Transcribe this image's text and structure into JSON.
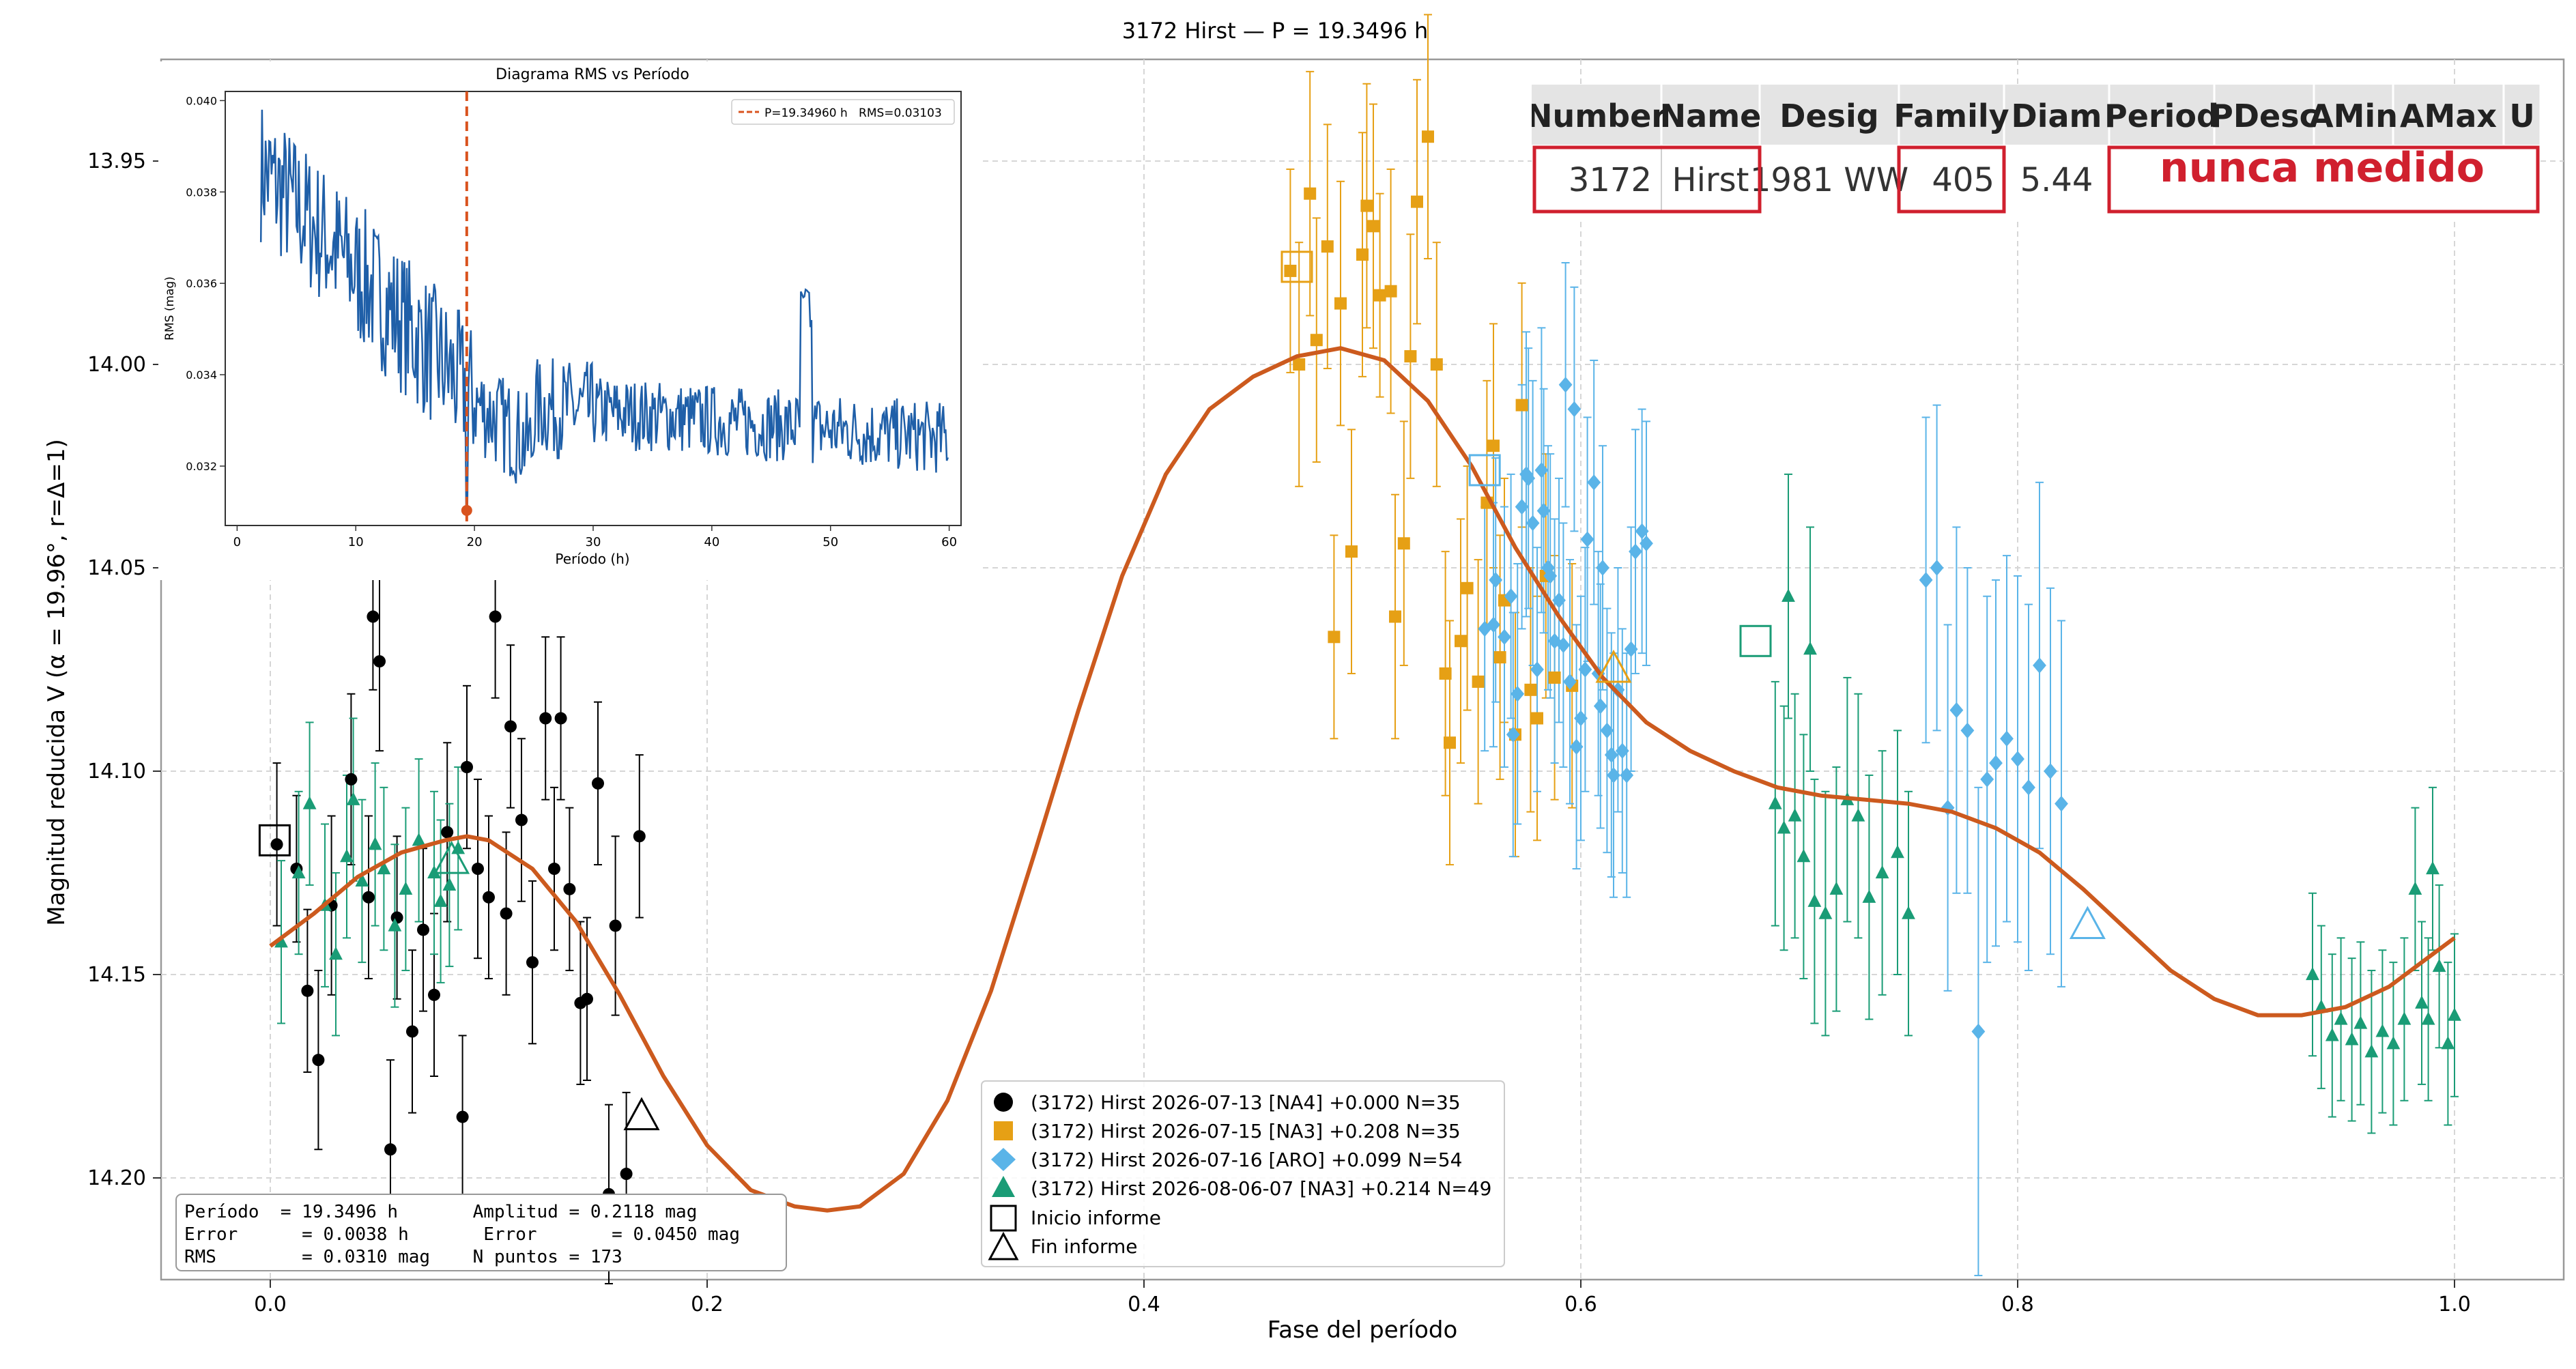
{
  "chart_data": {
    "type": "scatter",
    "title": "3172 Hirst — P = 19.3496 h",
    "xlabel": "Fase del período",
    "ylabel": "Magnitud reducida V  (α = 19.96°, r=Δ=1)",
    "xlim": [
      -0.05,
      1.05
    ],
    "ylim": [
      14.225,
      13.925
    ],
    "y_inverted": true,
    "xticks": [
      "0.0",
      "0.2",
      "0.4",
      "0.6",
      "0.8",
      "1.0"
    ],
    "xtick_values": [
      0.0,
      0.2,
      0.4,
      0.6,
      0.8,
      1.0
    ],
    "yticks": [
      "13.95",
      "14.00",
      "14.05",
      "14.10",
      "14.15",
      "14.20"
    ],
    "ytick_values": [
      13.95,
      14.0,
      14.05,
      14.1,
      14.15,
      14.2
    ],
    "grid": true,
    "legend_position": "bottom-center",
    "fit_curve": {
      "name": "",
      "color": "#cc5a1e",
      "x": [
        0.0,
        0.02,
        0.04,
        0.06,
        0.08,
        0.09,
        0.1,
        0.12,
        0.14,
        0.16,
        0.18,
        0.2,
        0.22,
        0.24,
        0.255,
        0.27,
        0.29,
        0.31,
        0.33,
        0.35,
        0.37,
        0.39,
        0.41,
        0.43,
        0.45,
        0.47,
        0.49,
        0.51,
        0.53,
        0.55,
        0.57,
        0.59,
        0.61,
        0.63,
        0.65,
        0.67,
        0.69,
        0.71,
        0.73,
        0.75,
        0.77,
        0.79,
        0.81,
        0.83,
        0.85,
        0.87,
        0.89,
        0.91,
        0.93,
        0.95,
        0.97,
        0.99,
        1.0
      ],
      "y": [
        14.143,
        14.135,
        14.126,
        14.12,
        14.117,
        14.116,
        14.117,
        14.124,
        14.137,
        14.155,
        14.175,
        14.192,
        14.203,
        14.207,
        14.208,
        14.207,
        14.199,
        14.181,
        14.154,
        14.12,
        14.085,
        14.052,
        14.027,
        14.011,
        14.003,
        13.998,
        13.996,
        13.999,
        14.009,
        14.025,
        14.045,
        14.062,
        14.077,
        14.088,
        14.095,
        14.1,
        14.104,
        14.106,
        14.107,
        14.108,
        14.11,
        14.114,
        14.12,
        14.129,
        14.139,
        14.149,
        14.156,
        14.16,
        14.16,
        14.158,
        14.153,
        14.145,
        14.141
      ]
    },
    "series": [
      {
        "name": "(3172) Hirst 2026-07-13 [NA4] +0.000 N=35",
        "marker": "circle",
        "color": "#000000",
        "x": [
          0.003,
          0.012,
          0.017,
          0.022,
          0.028,
          0.037,
          0.045,
          0.047,
          0.05,
          0.055,
          0.058,
          0.065,
          0.07,
          0.075,
          0.081,
          0.088,
          0.09,
          0.095,
          0.1,
          0.103,
          0.108,
          0.11,
          0.115,
          0.12,
          0.126,
          0.13,
          0.133,
          0.137,
          0.142,
          0.145,
          0.15,
          0.155,
          0.158,
          0.163,
          0.169
        ],
        "y": [
          14.118,
          14.124,
          14.154,
          14.171,
          14.133,
          14.102,
          14.131,
          14.062,
          14.073,
          14.193,
          14.136,
          14.164,
          14.139,
          14.155,
          14.115,
          14.185,
          14.099,
          14.124,
          14.131,
          14.062,
          14.135,
          14.089,
          14.112,
          14.147,
          14.087,
          14.124,
          14.087,
          14.129,
          14.157,
          14.156,
          14.103,
          14.204,
          14.138,
          14.199,
          14.116
        ],
        "err": [
          0.02,
          0.018,
          0.02,
          0.022,
          0.022,
          0.021,
          0.02,
          0.018,
          0.022,
          0.022,
          0.02,
          0.02,
          0.02,
          0.02,
          0.022,
          0.02,
          0.02,
          0.022,
          0.02,
          0.02,
          0.02,
          0.02,
          0.02,
          0.02,
          0.02,
          0.02,
          0.02,
          0.02,
          0.02,
          0.02,
          0.02,
          0.022,
          0.022,
          0.02,
          0.02
        ]
      },
      {
        "name": "(3172) Hirst 2026-07-15 [NA3] +0.208 N=35",
        "marker": "square",
        "color": "#e6a015",
        "x": [
          0.467,
          0.471,
          0.476,
          0.479,
          0.484,
          0.487,
          0.49,
          0.495,
          0.5,
          0.502,
          0.505,
          0.508,
          0.513,
          0.515,
          0.519,
          0.522,
          0.525,
          0.53,
          0.534,
          0.538,
          0.54,
          0.545,
          0.548,
          0.553,
          0.557,
          0.56,
          0.563,
          0.565,
          0.57,
          0.573,
          0.577,
          0.58,
          0.584,
          0.588,
          0.596
        ],
        "y": [
          13.977,
          14.0,
          13.958,
          13.994,
          13.971,
          14.067,
          13.985,
          14.046,
          13.973,
          13.961,
          13.966,
          13.983,
          13.982,
          14.062,
          14.044,
          13.998,
          13.96,
          13.944,
          14.0,
          14.076,
          14.093,
          14.068,
          14.055,
          14.078,
          14.034,
          14.02,
          14.072,
          14.058,
          14.091,
          14.01,
          14.08,
          14.087,
          14.052,
          14.077,
          14.079
        ],
        "err": [
          0.025,
          0.03,
          0.03,
          0.03,
          0.03,
          0.025,
          0.03,
          0.03,
          0.03,
          0.03,
          0.03,
          0.025,
          0.03,
          0.03,
          0.03,
          0.03,
          0.03,
          0.03,
          0.03,
          0.03,
          0.03,
          0.03,
          0.03,
          0.03,
          0.03,
          0.03,
          0.03,
          0.03,
          0.03,
          0.03,
          0.03,
          0.03,
          0.03,
          0.03,
          0.03
        ]
      },
      {
        "name": "(3172) Hirst 2026-07-16 [ARO] +0.099 N=54",
        "marker": "diamond",
        "color": "#5ab4e8",
        "x": [
          0.556,
          0.561,
          0.565,
          0.569,
          0.571,
          0.573,
          0.576,
          0.578,
          0.58,
          0.583,
          0.585,
          0.588,
          0.59,
          0.592,
          0.595,
          0.598,
          0.6,
          0.603,
          0.606,
          0.608,
          0.61,
          0.612,
          0.615,
          0.617,
          0.619,
          0.621,
          0.623,
          0.625,
          0.628,
          0.63,
          0.56,
          0.568,
          0.575,
          0.582,
          0.586,
          0.593,
          0.597,
          0.602,
          0.609,
          0.614,
          0.758,
          0.763,
          0.768,
          0.772,
          0.777,
          0.782,
          0.786,
          0.79,
          0.795,
          0.8,
          0.805,
          0.81,
          0.815,
          0.82
        ],
        "y": [
          14.065,
          14.053,
          14.067,
          14.091,
          14.081,
          14.035,
          14.028,
          14.039,
          14.075,
          14.036,
          14.05,
          14.068,
          14.058,
          14.069,
          14.078,
          14.094,
          14.087,
          14.043,
          14.029,
          14.076,
          14.05,
          14.09,
          14.101,
          14.08,
          14.095,
          14.101,
          14.07,
          14.046,
          14.041,
          14.044,
          14.064,
          14.057,
          14.027,
          14.026,
          14.052,
          14.005,
          14.011,
          14.075,
          14.084,
          14.096,
          14.053,
          14.05,
          14.109,
          14.085,
          14.09,
          14.164,
          14.102,
          14.098,
          14.092,
          14.097,
          14.104,
          14.074,
          14.1,
          14.108
        ],
        "err": [
          0.03,
          0.03,
          0.032,
          0.03,
          0.032,
          0.03,
          0.032,
          0.035,
          0.03,
          0.03,
          0.03,
          0.03,
          0.03,
          0.03,
          0.03,
          0.03,
          0.03,
          0.03,
          0.03,
          0.03,
          0.03,
          0.03,
          0.03,
          0.03,
          0.03,
          0.03,
          0.03,
          0.03,
          0.03,
          0.03,
          0.03,
          0.03,
          0.035,
          0.035,
          0.03,
          0.03,
          0.03,
          0.03,
          0.03,
          0.03,
          0.04,
          0.04,
          0.045,
          0.045,
          0.04,
          0.06,
          0.045,
          0.045,
          0.045,
          0.045,
          0.045,
          0.045,
          0.045,
          0.045
        ]
      },
      {
        "name": "(3172) Hirst 2026-08-06-07 [NA3] +0.214 N=49",
        "marker": "triangle",
        "color": "#1a9c76",
        "x": [
          0.005,
          0.013,
          0.018,
          0.025,
          0.03,
          0.035,
          0.038,
          0.042,
          0.048,
          0.052,
          0.057,
          0.062,
          0.068,
          0.075,
          0.078,
          0.082,
          0.086,
          0.689,
          0.693,
          0.698,
          0.702,
          0.707,
          0.712,
          0.717,
          0.722,
          0.727,
          0.732,
          0.738,
          0.745,
          0.75,
          0.695,
          0.705,
          0.935,
          0.939,
          0.944,
          0.948,
          0.953,
          0.957,
          0.962,
          0.967,
          0.972,
          0.977,
          0.982,
          0.985,
          0.988,
          0.993,
          0.997,
          1.0,
          0.99
        ],
        "y": [
          14.142,
          14.125,
          14.108,
          14.133,
          14.145,
          14.121,
          14.107,
          14.127,
          14.118,
          14.124,
          14.138,
          14.129,
          14.117,
          14.125,
          14.132,
          14.128,
          14.119,
          14.108,
          14.114,
          14.111,
          14.121,
          14.132,
          14.135,
          14.129,
          14.107,
          14.111,
          14.131,
          14.125,
          14.12,
          14.135,
          14.057,
          14.07,
          14.15,
          14.158,
          14.165,
          14.161,
          14.166,
          14.162,
          14.169,
          14.164,
          14.167,
          14.161,
          14.129,
          14.157,
          14.161,
          14.148,
          14.167,
          14.16,
          14.124
        ],
        "err": [
          0.02,
          0.02,
          0.02,
          0.02,
          0.02,
          0.02,
          0.02,
          0.02,
          0.02,
          0.02,
          0.02,
          0.02,
          0.02,
          0.02,
          0.02,
          0.02,
          0.02,
          0.03,
          0.03,
          0.03,
          0.03,
          0.03,
          0.03,
          0.03,
          0.03,
          0.03,
          0.03,
          0.03,
          0.03,
          0.03,
          0.03,
          0.03,
          0.02,
          0.02,
          0.02,
          0.02,
          0.02,
          0.02,
          0.02,
          0.02,
          0.02,
          0.02,
          0.02,
          0.02,
          0.02,
          0.02,
          0.02,
          0.02,
          0.02
        ]
      }
    ],
    "report_markers": {
      "start_label": "Inicio informe",
      "end_label": "Fin informe",
      "start": [
        {
          "x": 0.002,
          "y": 14.117,
          "color": "#000000"
        },
        {
          "x": 0.47,
          "y": 13.976,
          "color": "#e6a015"
        },
        {
          "x": 0.556,
          "y": 14.026,
          "color": "#5ab4e8"
        },
        {
          "x": 0.68,
          "y": 14.068,
          "color": "#1a9c76"
        }
      ],
      "end": [
        {
          "x": 0.17,
          "y": 14.185,
          "color": "#000000"
        },
        {
          "x": 0.083,
          "y": 14.122,
          "color": "#1a9c76"
        },
        {
          "x": 0.615,
          "y": 14.075,
          "color": "#e6a015"
        },
        {
          "x": 0.832,
          "y": 14.138,
          "color": "#5ab4e8"
        }
      ]
    },
    "stats_box": {
      "line1": "Período  = 19.3496 h       Amplitud = 0.2118 mag",
      "line2": "Error      = 0.0038 h       Error       = 0.0450 mag",
      "line3": "RMS        = 0.0310 mag    N puntos = 173"
    }
  },
  "inset": {
    "title": "Diagrama RMS vs Período",
    "xlabel": "Período (h)",
    "ylabel": "RMS (mag)",
    "xlim": [
      -1,
      61
    ],
    "ylim": [
      0.0307,
      0.0402
    ],
    "xticks": [
      "0",
      "10",
      "20",
      "30",
      "40",
      "50",
      "60"
    ],
    "xtick_values": [
      0,
      10,
      20,
      30,
      40,
      50,
      60
    ],
    "yticks": [
      "0.032",
      "0.034",
      "0.036",
      "0.038",
      "0.040"
    ],
    "ytick_values": [
      0.032,
      0.034,
      0.036,
      0.038,
      0.04
    ],
    "legend": "P=19.34960 h   RMS=0.03103",
    "best_period": 19.3496,
    "best_rms": 0.03103,
    "line_color": "#1f5fa8",
    "marker_color": "#d9531e"
  },
  "table": {
    "headers": [
      "Number",
      "Name",
      "Desig",
      "Family",
      "Diam",
      "Period",
      "PDesc",
      "AMin",
      "AMax",
      "U"
    ],
    "row": [
      "3172",
      "Hirst",
      "1981 WW",
      "405",
      "5.44"
    ],
    "note": "nunca medido",
    "note_color": "#d0202e"
  }
}
